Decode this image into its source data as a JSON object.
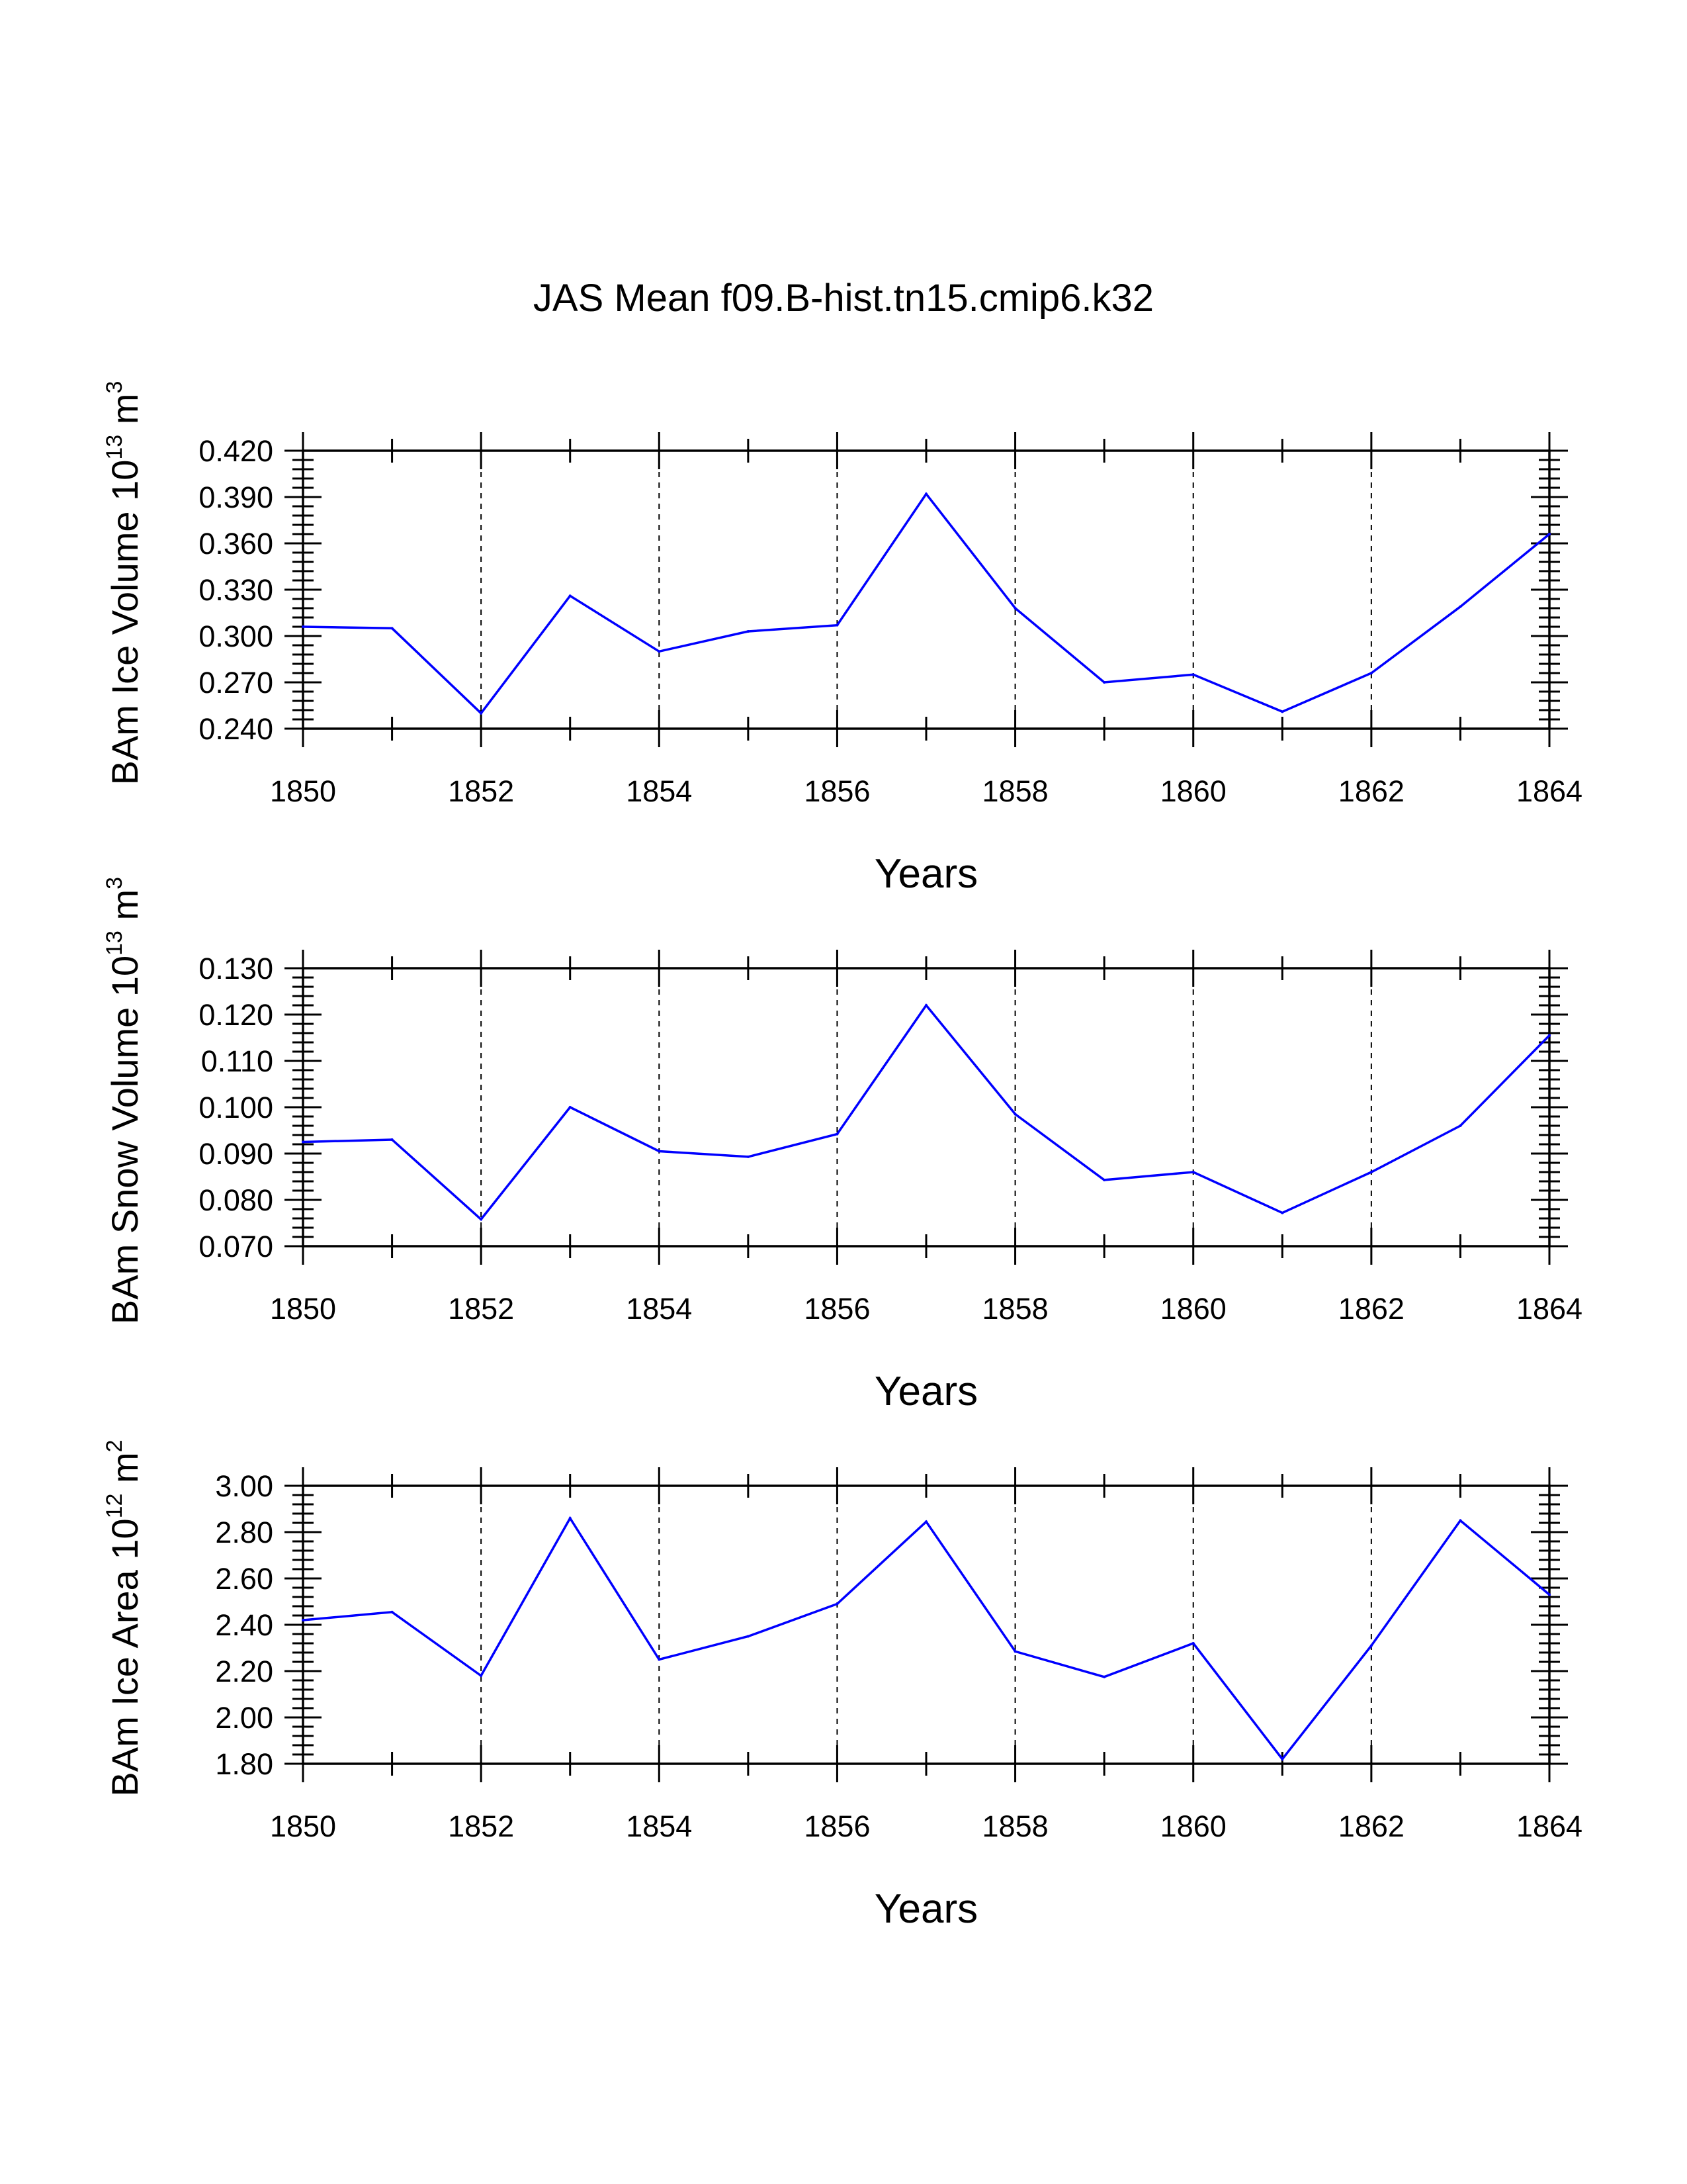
{
  "title": "JAS Mean f09.B-hist.tn15.cmip6.k32",
  "colors": {
    "series": "#0000ff",
    "axes": "#000000",
    "background": "#ffffff"
  },
  "chart_data": [
    {
      "type": "line",
      "name": "ice-volume",
      "ylabel": {
        "text": "BAm Ice Volume 10",
        "sup": "13",
        "unit": " m",
        "unit_sup": "3"
      },
      "xlabel": "Years",
      "xlim": [
        1850,
        1864
      ],
      "ylim": [
        0.24,
        0.42
      ],
      "xticks": [
        "1850",
        "1852",
        "1854",
        "1856",
        "1858",
        "1860",
        "1862",
        "1864"
      ],
      "yticks": [
        "0.240",
        "0.270",
        "0.300",
        "0.330",
        "0.360",
        "0.390",
        "0.420"
      ],
      "x": [
        1850,
        1851,
        1852,
        1853,
        1854,
        1855,
        1856,
        1857,
        1858,
        1859,
        1860,
        1861,
        1862,
        1863,
        1864
      ],
      "series": [
        {
          "name": "BAm Ice Volume",
          "values": [
            0.306,
            0.305,
            0.25,
            0.326,
            0.29,
            0.303,
            0.307,
            0.392,
            0.318,
            0.27,
            0.275,
            0.251,
            0.276,
            0.319,
            0.366
          ]
        }
      ],
      "grid": "dashed-vertical"
    },
    {
      "type": "line",
      "name": "snow-volume",
      "ylabel": {
        "text": "BAm Snow Volume 10",
        "sup": "13",
        "unit": " m",
        "unit_sup": "3"
      },
      "xlabel": "Years",
      "xlim": [
        1850,
        1864
      ],
      "ylim": [
        0.07,
        0.13
      ],
      "xticks": [
        "1850",
        "1852",
        "1854",
        "1856",
        "1858",
        "1860",
        "1862",
        "1864"
      ],
      "yticks": [
        "0.070",
        "0.080",
        "0.090",
        "0.100",
        "0.110",
        "0.120",
        "0.130"
      ],
      "x": [
        1850,
        1851,
        1852,
        1853,
        1854,
        1855,
        1856,
        1857,
        1858,
        1859,
        1860,
        1861,
        1862,
        1863,
        1864
      ],
      "series": [
        {
          "name": "BAm Snow Volume",
          "values": [
            0.0925,
            0.093,
            0.0758,
            0.1,
            0.0905,
            0.0893,
            0.0942,
            0.122,
            0.0985,
            0.0843,
            0.086,
            0.0772,
            0.086,
            0.096,
            0.1155
          ]
        }
      ],
      "grid": "dashed-vertical"
    },
    {
      "type": "line",
      "name": "ice-area",
      "ylabel": {
        "text": "BAm Ice Area 10",
        "sup": "12",
        "unit": " m",
        "unit_sup": "2"
      },
      "xlabel": "Years",
      "xlim": [
        1850,
        1864
      ],
      "ylim": [
        1.8,
        3.0
      ],
      "xticks": [
        "1850",
        "1852",
        "1854",
        "1856",
        "1858",
        "1860",
        "1862",
        "1864"
      ],
      "yticks": [
        "1.80",
        "2.00",
        "2.20",
        "2.40",
        "2.60",
        "2.80",
        "3.00"
      ],
      "x": [
        1850,
        1851,
        1852,
        1853,
        1854,
        1855,
        1856,
        1857,
        1858,
        1859,
        1860,
        1861,
        1862,
        1863,
        1864
      ],
      "series": [
        {
          "name": "BAm Ice Area",
          "values": [
            2.42,
            2.455,
            2.18,
            2.86,
            2.25,
            2.35,
            2.49,
            2.845,
            2.285,
            2.175,
            2.32,
            1.82,
            2.31,
            2.85,
            2.53
          ]
        }
      ],
      "grid": "dashed-vertical"
    }
  ]
}
